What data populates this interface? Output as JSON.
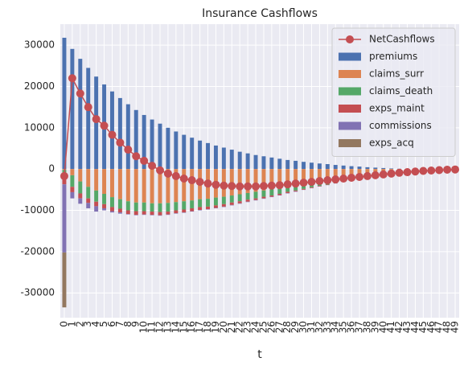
{
  "chart_data": {
    "type": "bar",
    "stacked": true,
    "title": "Insurance Cashflows",
    "x_label": "t",
    "categories": [
      0,
      1,
      2,
      3,
      4,
      5,
      6,
      7,
      8,
      9,
      10,
      11,
      12,
      13,
      14,
      15,
      16,
      17,
      18,
      19,
      20,
      21,
      22,
      23,
      24,
      25,
      26,
      27,
      28,
      29,
      30,
      31,
      32,
      33,
      34,
      35,
      36,
      37,
      38,
      39,
      40,
      41,
      42,
      43,
      44,
      45,
      46,
      47,
      48,
      49
    ],
    "series": [
      {
        "name": "NetCashflows",
        "type": "line",
        "color": "#c44e52",
        "values": [
          -1700,
          22000,
          18300,
          15000,
          12100,
          10500,
          8300,
          6400,
          4700,
          3100,
          2000,
          800,
          -300,
          -1100,
          -1700,
          -2300,
          -2700,
          -3100,
          -3500,
          -3800,
          -4000,
          -4100,
          -4200,
          -4200,
          -4200,
          -4100,
          -4000,
          -3900,
          -3700,
          -3500,
          -3300,
          -3100,
          -2900,
          -2700,
          -2500,
          -2300,
          -2100,
          -1900,
          -1700,
          -1500,
          -1300,
          -1100,
          -900,
          -750,
          -600,
          -450,
          -350,
          -250,
          -150,
          -100
        ]
      },
      {
        "name": "premiums",
        "color": "#4c72b0",
        "values": [
          31800,
          29100,
          26700,
          24500,
          22400,
          20500,
          18800,
          17200,
          15700,
          14300,
          13100,
          12000,
          11000,
          10000,
          9100,
          8300,
          7600,
          6900,
          6300,
          5700,
          5200,
          4700,
          4200,
          3800,
          3400,
          3100,
          2800,
          2500,
          2200,
          2000,
          1750,
          1550,
          1350,
          1200,
          1000,
          850,
          700,
          600,
          450,
          350,
          250,
          150,
          80,
          30,
          0,
          0,
          0,
          0,
          0,
          0
        ]
      },
      {
        "name": "claims_surr",
        "color": "#dd8452",
        "values": [
          -200,
          -1500,
          -3000,
          -4300,
          -5200,
          -6000,
          -6800,
          -7300,
          -7800,
          -8100,
          -8100,
          -8300,
          -8300,
          -8200,
          -8000,
          -7800,
          -7600,
          -7300,
          -7200,
          -6900,
          -6700,
          -6400,
          -6100,
          -5800,
          -5500,
          -5200,
          -4900,
          -4600,
          -4200,
          -3900,
          -3600,
          -3300,
          -3000,
          -2750,
          -2450,
          -2200,
          -1950,
          -1740,
          -1480,
          -1270,
          -1050,
          -840,
          -650,
          -500,
          -380,
          -270,
          -200,
          -130,
          -70,
          -40
        ]
      },
      {
        "name": "claims_death",
        "color": "#55a868",
        "values": [
          -2000,
          -2800,
          -2900,
          -2800,
          -2700,
          -2500,
          -2400,
          -2300,
          -2200,
          -2100,
          -2100,
          -2000,
          -2100,
          -2100,
          -2000,
          -2000,
          -1900,
          -1900,
          -1900,
          -1900,
          -1800,
          -1700,
          -1700,
          -1600,
          -1600,
          -1500,
          -1500,
          -1400,
          -1300,
          -1300,
          -1200,
          -1100,
          -1050,
          -1000,
          -920,
          -850,
          -770,
          -700,
          -630,
          -550,
          -480,
          -400,
          -330,
          -280,
          -220,
          -180,
          -150,
          -120,
          -80,
          -60
        ]
      },
      {
        "name": "exps_maint",
        "color": "#c44e52",
        "values": [
          -1500,
          -1300,
          -1200,
          -1100,
          -1100,
          -1000,
          -1000,
          -900,
          -900,
          -900,
          -800,
          -800,
          -800,
          -700,
          -700,
          -700,
          -700,
          -700,
          -600,
          -600,
          -600,
          -600,
          -500,
          -500,
          -400,
          -400,
          -300,
          -300,
          -300,
          -200,
          -200,
          -200,
          -150,
          -120,
          -100,
          -80,
          -60,
          -50,
          -40,
          -30,
          -20,
          -10,
          0,
          0,
          0,
          0,
          0,
          0,
          0,
          0
        ]
      },
      {
        "name": "commissions",
        "color": "#8172b3",
        "values": [
          -16500,
          -1500,
          -1300,
          -1300,
          -1300,
          -500,
          -300,
          -300,
          -100,
          -100,
          -100,
          -100,
          -100,
          -100,
          -100,
          -100,
          -100,
          -100,
          -100,
          -100,
          -100,
          -100,
          -100,
          -100,
          -100,
          -100,
          -100,
          -100,
          -100,
          -100,
          -50,
          -50,
          -50,
          -30,
          -30,
          -20,
          -20,
          -10,
          0,
          0,
          0,
          0,
          0,
          0,
          0,
          0,
          0,
          0,
          0,
          0
        ]
      },
      {
        "name": "exps_acq",
        "color": "#937860",
        "values": [
          -13300,
          0,
          0,
          0,
          0,
          0,
          0,
          0,
          0,
          0,
          0,
          0,
          0,
          0,
          0,
          0,
          0,
          0,
          0,
          0,
          0,
          0,
          0,
          0,
          0,
          0,
          0,
          0,
          0,
          0,
          0,
          0,
          0,
          0,
          0,
          0,
          0,
          0,
          0,
          0,
          0,
          0,
          0,
          0,
          0,
          0,
          0,
          0,
          0,
          0
        ]
      }
    ],
    "ylim": [
      -36000,
      35100
    ],
    "yticks": [
      -30000,
      -20000,
      -10000,
      0,
      10000,
      20000,
      30000
    ],
    "grid": true,
    "legend": "upper right"
  }
}
